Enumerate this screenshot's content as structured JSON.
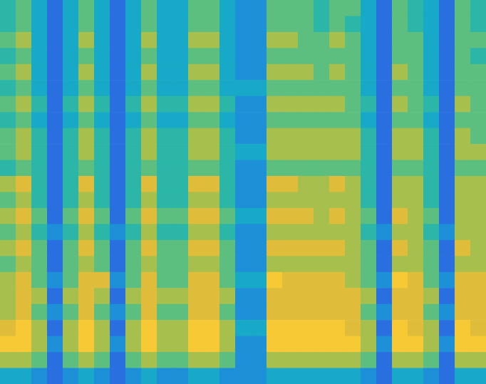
{
  "chart_data": {
    "type": "heatmap",
    "tick_labels": false,
    "cells": [
      [
        5,
        6,
        4,
        2,
        4,
        6,
        4,
        2,
        4,
        6,
        4,
        4,
        6,
        6,
        4,
        3,
        3,
        6,
        6,
        6,
        5,
        6,
        6,
        4,
        2,
        6,
        5,
        4,
        2,
        6,
        5
      ],
      [
        5,
        6,
        4,
        2,
        4,
        6,
        4,
        2,
        4,
        6,
        4,
        4,
        6,
        6,
        4,
        3,
        3,
        6,
        6,
        6,
        5,
        6,
        5,
        4,
        2,
        6,
        5,
        4,
        2,
        6,
        5
      ],
      [
        6,
        7,
        4,
        2,
        4,
        7,
        4,
        2,
        4,
        7,
        4,
        4,
        7,
        7,
        4,
        3,
        3,
        7,
        7,
        6,
        6,
        7,
        6,
        4,
        2,
        6,
        6,
        4,
        2,
        6,
        6
      ],
      [
        5,
        6,
        4,
        2,
        4,
        6,
        4,
        2,
        4,
        6,
        4,
        4,
        6,
        6,
        4,
        3,
        3,
        6,
        6,
        6,
        6,
        6,
        6,
        4,
        2,
        6,
        6,
        4,
        2,
        6,
        5
      ],
      [
        6,
        7,
        4,
        2,
        4,
        7,
        4,
        2,
        4,
        7,
        4,
        4,
        7,
        7,
        4,
        3,
        3,
        7,
        7,
        7,
        6,
        7,
        6,
        4,
        2,
        7,
        6,
        4,
        2,
        6,
        6
      ],
      [
        5,
        6,
        4,
        2,
        4,
        6,
        4,
        2,
        4,
        6,
        4,
        4,
        6,
        6,
        4,
        4,
        4,
        6,
        6,
        6,
        6,
        6,
        6,
        4,
        2,
        6,
        6,
        4,
        2,
        6,
        6
      ],
      [
        6,
        7,
        5,
        2,
        5,
        7,
        5,
        2,
        5,
        7,
        5,
        5,
        7,
        7,
        5,
        3,
        3,
        7,
        7,
        7,
        7,
        7,
        6,
        5,
        2,
        7,
        6,
        5,
        2,
        7,
        6
      ],
      [
        5,
        6,
        4,
        2,
        4,
        6,
        4,
        2,
        4,
        6,
        4,
        4,
        6,
        6,
        4,
        3,
        3,
        6,
        6,
        6,
        6,
        6,
        6,
        4,
        2,
        6,
        6,
        4,
        2,
        6,
        6
      ],
      [
        6,
        7,
        5,
        2,
        5,
        7,
        5,
        2,
        5,
        7,
        5,
        5,
        7,
        7,
        5,
        3,
        3,
        7,
        7,
        7,
        7,
        7,
        7,
        5,
        2,
        7,
        7,
        5,
        2,
        7,
        6
      ],
      [
        6,
        7,
        5,
        2,
        5,
        7,
        5,
        2,
        5,
        7,
        5,
        5,
        7,
        7,
        5,
        4,
        4,
        7,
        7,
        7,
        7,
        7,
        7,
        5,
        2,
        7,
        7,
        5,
        2,
        7,
        7
      ],
      [
        5,
        6,
        5,
        2,
        5,
        6,
        5,
        2,
        5,
        6,
        5,
        5,
        6,
        6,
        5,
        3,
        3,
        6,
        6,
        6,
        6,
        6,
        6,
        5,
        2,
        6,
        6,
        5,
        2,
        6,
        6
      ],
      [
        7,
        8,
        5,
        2,
        5,
        8,
        5,
        2,
        5,
        8,
        5,
        5,
        8,
        8,
        5,
        3,
        3,
        8,
        8,
        7,
        7,
        8,
        7,
        5,
        2,
        7,
        7,
        5,
        2,
        7,
        7
      ],
      [
        6,
        7,
        5,
        2,
        5,
        7,
        5,
        2,
        5,
        7,
        5,
        5,
        7,
        7,
        5,
        3,
        3,
        7,
        7,
        7,
        7,
        7,
        7,
        5,
        2,
        7,
        7,
        5,
        2,
        7,
        7
      ],
      [
        7,
        8,
        6,
        2,
        6,
        8,
        6,
        2,
        6,
        8,
        6,
        6,
        8,
        8,
        6,
        4,
        4,
        8,
        8,
        8,
        7,
        8,
        7,
        6,
        2,
        8,
        7,
        6,
        2,
        7,
        7
      ],
      [
        6,
        7,
        5,
        3,
        5,
        7,
        5,
        3,
        5,
        7,
        5,
        5,
        7,
        7,
        5,
        3,
        3,
        7,
        7,
        7,
        7,
        7,
        7,
        5,
        3,
        7,
        7,
        5,
        3,
        7,
        7
      ],
      [
        7,
        8,
        6,
        2,
        6,
        8,
        6,
        2,
        6,
        8,
        6,
        6,
        8,
        8,
        6,
        3,
        3,
        8,
        8,
        8,
        8,
        8,
        7,
        6,
        2,
        8,
        7,
        6,
        2,
        8,
        7
      ],
      [
        6,
        7,
        6,
        2,
        6,
        7,
        6,
        2,
        6,
        7,
        6,
        6,
        7,
        7,
        6,
        3,
        3,
        7,
        7,
        7,
        7,
        7,
        7,
        6,
        2,
        7,
        7,
        6,
        2,
        7,
        7
      ],
      [
        7,
        8,
        6,
        3,
        6,
        8,
        8,
        3,
        6,
        8,
        6,
        6,
        8,
        8,
        6,
        4,
        4,
        9,
        8,
        8,
        8,
        8,
        7,
        6,
        3,
        9,
        8,
        6,
        3,
        8,
        8
      ],
      [
        7,
        8,
        7,
        2,
        7,
        8,
        7,
        2,
        7,
        8,
        7,
        7,
        8,
        8,
        7,
        3,
        3,
        8,
        8,
        8,
        8,
        8,
        8,
        7,
        2,
        8,
        8,
        7,
        2,
        8,
        8
      ],
      [
        7,
        8,
        6,
        3,
        6,
        8,
        6,
        3,
        6,
        8,
        6,
        6,
        8,
        8,
        6,
        3,
        3,
        8,
        8,
        8,
        8,
        8,
        8,
        6,
        3,
        8,
        8,
        6,
        3,
        8,
        8
      ],
      [
        8,
        9,
        7,
        2,
        7,
        9,
        7,
        2,
        7,
        9,
        7,
        7,
        9,
        9,
        7,
        4,
        4,
        9,
        9,
        9,
        9,
        9,
        8,
        7,
        2,
        9,
        8,
        7,
        2,
        9,
        8
      ],
      [
        9,
        9,
        7,
        3,
        7,
        9,
        7,
        3,
        7,
        9,
        7,
        7,
        9,
        9,
        7,
        3,
        3,
        9,
        9,
        9,
        9,
        9,
        9,
        7,
        3,
        9,
        9,
        7,
        3,
        9,
        9
      ],
      [
        7,
        7,
        6,
        2,
        6,
        7,
        6,
        2,
        6,
        7,
        6,
        6,
        7,
        7,
        6,
        3,
        3,
        7,
        7,
        7,
        7,
        7,
        7,
        6,
        2,
        7,
        7,
        6,
        2,
        7,
        7
      ],
      [
        4,
        4,
        3,
        2,
        3,
        4,
        3,
        2,
        3,
        4,
        3,
        3,
        4,
        4,
        3,
        3,
        3,
        4,
        4,
        4,
        4,
        4,
        4,
        3,
        2,
        4,
        4,
        3,
        2,
        4,
        4
      ]
    ]
  }
}
